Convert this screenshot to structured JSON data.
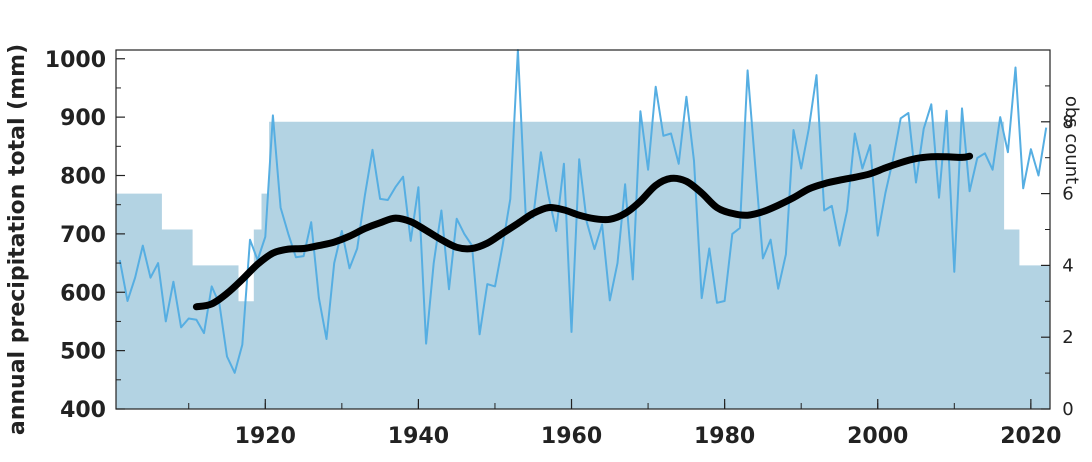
{
  "chart_data": {
    "type": "line",
    "title": "",
    "xlabel": "",
    "ylabel": "annual precipitation total (mm)",
    "y2label": "obs count",
    "xlim": [
      1900.5,
      2022.5
    ],
    "ylim": [
      400,
      1015
    ],
    "y2lim": [
      0,
      10
    ],
    "xticks": [
      1920,
      1940,
      1960,
      1980,
      2000,
      2020
    ],
    "yticks": [
      400,
      500,
      600,
      700,
      800,
      900,
      1000
    ],
    "y2ticks": [
      0,
      2,
      4,
      6,
      8
    ],
    "grid": false,
    "colors": {
      "annual": "#56aee2",
      "smooth": "#000000",
      "count": "#b3d3e3",
      "axis": "#222222"
    },
    "series": [
      {
        "kind": "obs-count-area",
        "x": [
          1901,
          1902,
          1903,
          1904,
          1905,
          1906,
          1907,
          1908,
          1909,
          1910,
          1911,
          1912,
          1913,
          1914,
          1915,
          1916,
          1917,
          1918,
          1919,
          1920,
          1921,
          1922,
          1923,
          1924,
          1925,
          1926,
          1927,
          1928,
          1929,
          1930,
          1931,
          1932,
          1933,
          1934,
          1935,
          1936,
          1937,
          1938,
          1939,
          1940,
          1941,
          1942,
          1943,
          1944,
          1945,
          1946,
          1947,
          1948,
          1949,
          1950,
          1951,
          1952,
          1953,
          1954,
          1955,
          1956,
          1957,
          1958,
          1959,
          1960,
          1961,
          1962,
          1963,
          1964,
          1965,
          1966,
          1967,
          1968,
          1969,
          1970,
          1971,
          1972,
          1973,
          1974,
          1975,
          1976,
          1977,
          1978,
          1979,
          1980,
          1981,
          1982,
          1983,
          1984,
          1985,
          1986,
          1987,
          1988,
          1989,
          1990,
          1991,
          1992,
          1993,
          1994,
          1995,
          1996,
          1997,
          1998,
          1999,
          2000,
          2001,
          2002,
          2003,
          2004,
          2005,
          2006,
          2007,
          2008,
          2009,
          2010,
          2011,
          2012,
          2013,
          2014,
          2015,
          2016,
          2017,
          2018,
          2019,
          2020,
          2021,
          2022
        ],
        "values": [
          6,
          6,
          6,
          6,
          6,
          6,
          5,
          5,
          5,
          5,
          4,
          4,
          4,
          4,
          4,
          4,
          3,
          3,
          5,
          6,
          8,
          8,
          8,
          8,
          8,
          8,
          8,
          8,
          8,
          8,
          8,
          8,
          8,
          8,
          8,
          8,
          8,
          8,
          8,
          8,
          8,
          8,
          8,
          8,
          8,
          8,
          8,
          8,
          8,
          8,
          8,
          8,
          8,
          8,
          8,
          8,
          8,
          8,
          8,
          8,
          8,
          8,
          8,
          8,
          8,
          8,
          8,
          8,
          8,
          8,
          8,
          8,
          8,
          8,
          8,
          8,
          8,
          8,
          8,
          8,
          8,
          8,
          8,
          8,
          8,
          8,
          8,
          8,
          8,
          8,
          8,
          8,
          8,
          8,
          8,
          8,
          8,
          8,
          8,
          8,
          8,
          8,
          8,
          8,
          8,
          8,
          8,
          8,
          8,
          8,
          8,
          8,
          8,
          8,
          8,
          8,
          5,
          5,
          4,
          4,
          4,
          4
        ]
      },
      {
        "kind": "annual-line",
        "x": [
          1901,
          1902,
          1903,
          1904,
          1905,
          1906,
          1907,
          1908,
          1909,
          1910,
          1911,
          1912,
          1913,
          1914,
          1915,
          1916,
          1917,
          1918,
          1919,
          1920,
          1921,
          1922,
          1923,
          1924,
          1925,
          1926,
          1927,
          1928,
          1929,
          1930,
          1931,
          1932,
          1933,
          1934,
          1935,
          1936,
          1937,
          1938,
          1939,
          1940,
          1941,
          1942,
          1943,
          1944,
          1945,
          1946,
          1947,
          1948,
          1949,
          1950,
          1951,
          1952,
          1953,
          1954,
          1955,
          1956,
          1957,
          1958,
          1959,
          1960,
          1961,
          1962,
          1963,
          1964,
          1965,
          1966,
          1967,
          1968,
          1969,
          1970,
          1971,
          1972,
          1973,
          1974,
          1975,
          1976,
          1977,
          1978,
          1979,
          1980,
          1981,
          1982,
          1983,
          1984,
          1985,
          1986,
          1987,
          1988,
          1989,
          1990,
          1991,
          1992,
          1993,
          1994,
          1995,
          1996,
          1997,
          1998,
          1999,
          2000,
          2001,
          2002,
          2003,
          2004,
          2005,
          2006,
          2007,
          2008,
          2009,
          2010,
          2011,
          2012,
          2013,
          2014,
          2015,
          2016,
          2017,
          2018,
          2019,
          2020,
          2021,
          2022
        ],
        "values": [
          655,
          585,
          625,
          680,
          625,
          650,
          550,
          618,
          540,
          555,
          553,
          530,
          610,
          580,
          490,
          462,
          510,
          690,
          655,
          695,
          903,
          745,
          700,
          660,
          662,
          720,
          590,
          520,
          650,
          705,
          641,
          675,
          765,
          844,
          760,
          758,
          780,
          798,
          688,
          780,
          512,
          650,
          740,
          605,
          726,
          700,
          680,
          528,
          614,
          610,
          680,
          760,
          1015,
          735,
          728,
          840,
          765,
          705,
          820,
          532,
          828,
          720,
          674,
          716,
          586,
          650,
          785,
          622,
          910,
          810,
          952,
          868,
          872,
          820,
          935,
          825,
          590,
          675,
          582,
          585,
          700,
          710,
          980,
          815,
          658,
          690,
          606,
          665,
          878,
          812,
          880,
          972,
          740,
          748,
          680,
          740,
          872,
          812,
          852,
          697,
          770,
          828,
          898,
          907,
          788,
          880,
          922,
          762,
          911,
          635,
          915,
          773,
          830,
          838,
          810,
          900,
          840,
          985,
          778,
          845,
          800,
          882
        ]
      },
      {
        "kind": "smoothed-line",
        "x": [
          1911,
          1913,
          1915,
          1917,
          1919,
          1921,
          1923,
          1925,
          1927,
          1929,
          1931,
          1933,
          1935,
          1937,
          1939,
          1941,
          1943,
          1945,
          1947,
          1949,
          1951,
          1953,
          1955,
          1957,
          1959,
          1961,
          1963,
          1965,
          1967,
          1969,
          1971,
          1973,
          1975,
          1977,
          1979,
          1981,
          1983,
          1985,
          1987,
          1989,
          1991,
          1993,
          1995,
          1997,
          1999,
          2001,
          2003,
          2005,
          2007,
          2009,
          2011,
          2012
        ],
        "values": [
          575,
          580,
          598,
          622,
          648,
          667,
          674,
          675,
          680,
          686,
          696,
          709,
          719,
          727,
          721,
          706,
          690,
          677,
          675,
          684,
          701,
          718,
          735,
          745,
          741,
          732,
          726,
          725,
          735,
          756,
          783,
          795,
          790,
          770,
          745,
          735,
          732,
          738,
          749,
          762,
          777,
          786,
          792,
          797,
          803,
          813,
          822,
          829,
          832,
          832,
          831,
          833
        ]
      }
    ]
  }
}
